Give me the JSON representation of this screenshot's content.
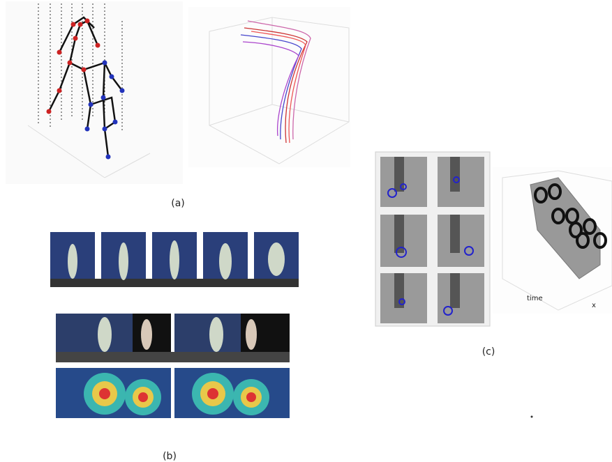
{
  "panels": [
    {
      "label": "(a)"
    },
    {
      "label": "(b)"
    },
    {
      "label": "(c)",
      "axis_labels": [
        "time",
        "x"
      ]
    }
  ]
}
